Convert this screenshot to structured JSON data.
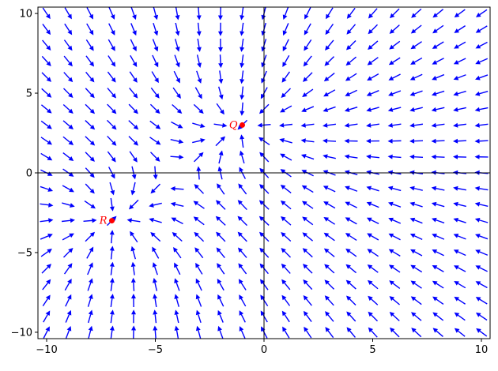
{
  "chart_data": {
    "type": "vector-field",
    "title": "",
    "xlabel": "",
    "ylabel": "",
    "xlim": [
      -10.4,
      10.4
    ],
    "ylim": [
      -10.4,
      10.4
    ],
    "grid": false,
    "axes_through_origin": true,
    "x_ticks": [
      {
        "value": -10,
        "label": "−10"
      },
      {
        "value": -5,
        "label": "−5"
      },
      {
        "value": 0,
        "label": "0"
      },
      {
        "value": 5,
        "label": "5"
      },
      {
        "value": 10,
        "label": "10"
      }
    ],
    "y_ticks": [
      {
        "value": 10,
        "label": "10"
      },
      {
        "value": 5,
        "label": "5"
      },
      {
        "value": 0,
        "label": "0"
      },
      {
        "value": -5,
        "label": "−5"
      },
      {
        "value": -10,
        "label": "−10"
      }
    ],
    "arrow_color": "#0000ff",
    "arrow_grid": {
      "start": -10,
      "end": 10,
      "count": 21
    },
    "point_color": "#ff0000",
    "points": [
      {
        "label": "Q",
        "x": -1,
        "y": 3
      },
      {
        "label": "R",
        "x": -7,
        "y": -3
      }
    ]
  }
}
